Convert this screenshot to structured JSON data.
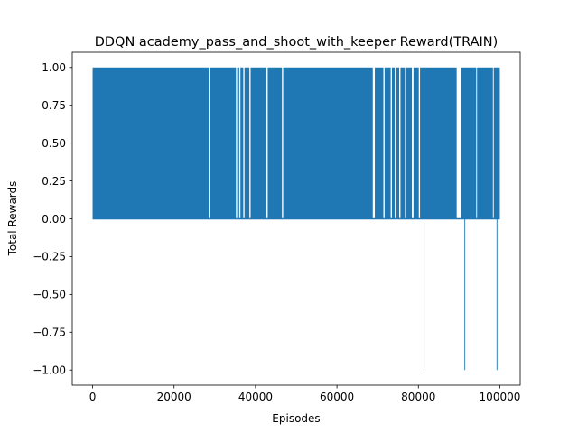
{
  "chart_data": {
    "type": "line",
    "title": "DDQN academy_pass_and_shoot_with_keeper Reward(TRAIN)",
    "xlabel": "Episodes",
    "ylabel": "Total Rewards",
    "xlim": [
      -5000,
      105000
    ],
    "ylim": [
      -1.1,
      1.1
    ],
    "xticks": [
      0,
      20000,
      40000,
      60000,
      80000,
      100000
    ],
    "xtick_labels": [
      "0",
      "20000",
      "40000",
      "60000",
      "80000",
      "100000"
    ],
    "yticks": [
      -1.0,
      -0.75,
      -0.5,
      -0.25,
      0.0,
      0.25,
      0.5,
      0.75,
      1.0
    ],
    "ytick_labels": [
      "−1.00",
      "−0.75",
      "−0.50",
      "−0.25",
      "0.00",
      "0.25",
      "0.50",
      "0.75",
      "1.00"
    ],
    "grid": false,
    "line_color": "#1f77b4",
    "series": [
      {
        "x_range": [
          0,
          100000
        ],
        "value_set": [
          -1,
          0,
          1
        ],
        "band_upper": [
          {
            "x": [
              0,
              28500
            ],
            "value": 1
          },
          {
            "x": [
              28500,
              28700
            ],
            "value": 0
          },
          {
            "x": [
              28700,
              35200
            ],
            "value": 1
          },
          {
            "x": [
              35200,
              35500
            ],
            "value": 0
          },
          {
            "x": [
              35500,
              36000
            ],
            "value": 1
          },
          {
            "x": [
              36000,
              36300
            ],
            "value": 0
          },
          {
            "x": [
              36300,
              37000
            ],
            "value": 1
          },
          {
            "x": [
              37000,
              37300
            ],
            "value": 0
          },
          {
            "x": [
              37300,
              38500
            ],
            "value": 1
          },
          {
            "x": [
              38500,
              38800
            ],
            "value": 0
          },
          {
            "x": [
              38800,
              42600
            ],
            "value": 1
          },
          {
            "x": [
              42600,
              43000
            ],
            "value": 0
          },
          {
            "x": [
              43000,
              46500
            ],
            "value": 1
          },
          {
            "x": [
              46500,
              46800
            ],
            "value": 0
          },
          {
            "x": [
              46800,
              68800
            ],
            "value": 1
          },
          {
            "x": [
              68800,
              69300
            ],
            "value": 0
          },
          {
            "x": [
              69300,
              71400
            ],
            "value": 1
          },
          {
            "x": [
              71400,
              71700
            ],
            "value": 0
          },
          {
            "x": [
              71700,
              73200
            ],
            "value": 1
          },
          {
            "x": [
              73200,
              73500
            ],
            "value": 0
          },
          {
            "x": [
              73500,
              74200
            ],
            "value": 1
          },
          {
            "x": [
              74200,
              74600
            ],
            "value": 0
          },
          {
            "x": [
              74600,
              75300
            ],
            "value": 1
          },
          {
            "x": [
              75300,
              75600
            ],
            "value": 0
          },
          {
            "x": [
              75600,
              76700
            ],
            "value": 1
          },
          {
            "x": [
              76700,
              77000
            ],
            "value": 0
          },
          {
            "x": [
              77000,
              78400
            ],
            "value": 1
          },
          {
            "x": [
              78400,
              78800
            ],
            "value": 0
          },
          {
            "x": [
              78800,
              80100
            ],
            "value": 1
          },
          {
            "x": [
              80100,
              80400
            ],
            "value": 0
          },
          {
            "x": [
              80400,
              89400
            ],
            "value": 1
          },
          {
            "x": [
              89400,
              90500
            ],
            "value": 0
          },
          {
            "x": [
              90500,
              94200
            ],
            "value": 1
          },
          {
            "x": [
              94200,
              94400
            ],
            "value": 0
          },
          {
            "x": [
              94400,
              98300
            ],
            "value": 1
          },
          {
            "x": [
              98300,
              98500
            ],
            "value": 0
          },
          {
            "x": [
              98500,
              100000
            ],
            "value": 1
          }
        ],
        "band_lower": [
          {
            "x": [
              0,
              81300
            ],
            "value": -1
          },
          {
            "x": [
              81300,
              81500
            ],
            "value": 0
          },
          {
            "x": [
              81500,
              91300
            ],
            "value": -1
          },
          {
            "x": [
              91300,
              91500
            ],
            "value": 0
          },
          {
            "x": [
              91500,
              99200
            ],
            "value": -1
          },
          {
            "x": [
              99200,
              99400
            ],
            "value": 0
          },
          {
            "x": [
              99400,
              100000
            ],
            "value": -1
          }
        ]
      }
    ]
  }
}
